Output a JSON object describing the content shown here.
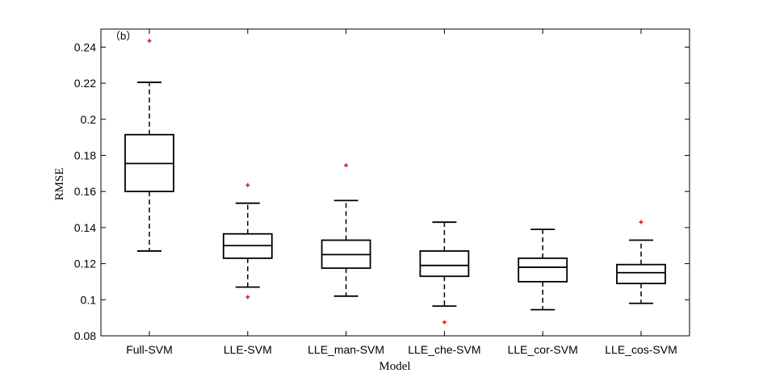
{
  "chart_data": {
    "type": "box",
    "panel_label": "（b）",
    "xlabel": "Model",
    "ylabel": "RMSE",
    "ylim": [
      0.08,
      0.25
    ],
    "yticks": [
      0.08,
      0.1,
      0.12,
      0.14,
      0.16,
      0.18,
      0.2,
      0.22,
      0.24
    ],
    "ytick_labels": [
      "0.08",
      "0.1",
      "0.12",
      "0.14",
      "0.16",
      "0.18",
      "0.2",
      "0.22",
      "0.24"
    ],
    "categories": [
      "Full-SVM",
      "LLE-SVM",
      "LLE_man-SVM",
      "LLE_che-SVM",
      "LLE_cor-SVM",
      "LLE_cos-SVM"
    ],
    "boxes": [
      {
        "whisker_low": 0.127,
        "q1": 0.16,
        "median": 0.1755,
        "q3": 0.1915,
        "whisker_high": 0.2205,
        "outliers": [
          0.2435
        ]
      },
      {
        "whisker_low": 0.107,
        "q1": 0.123,
        "median": 0.13,
        "q3": 0.1365,
        "whisker_high": 0.1535,
        "outliers": [
          0.1635,
          0.1015
        ]
      },
      {
        "whisker_low": 0.102,
        "q1": 0.1175,
        "median": 0.125,
        "q3": 0.133,
        "whisker_high": 0.155,
        "outliers": [
          0.1745
        ]
      },
      {
        "whisker_low": 0.0965,
        "q1": 0.113,
        "median": 0.119,
        "q3": 0.127,
        "whisker_high": 0.143,
        "outliers": [
          0.0875
        ]
      },
      {
        "whisker_low": 0.0945,
        "q1": 0.11,
        "median": 0.118,
        "q3": 0.123,
        "whisker_high": 0.139,
        "outliers": []
      },
      {
        "whisker_low": 0.098,
        "q1": 0.109,
        "median": 0.115,
        "q3": 0.1195,
        "whisker_high": 0.133,
        "outliers": [
          0.143
        ]
      }
    ],
    "colors": {
      "box": "#000000",
      "outlier": "#e02020",
      "axis": "#000000"
    },
    "grid": false,
    "legend": "none"
  }
}
